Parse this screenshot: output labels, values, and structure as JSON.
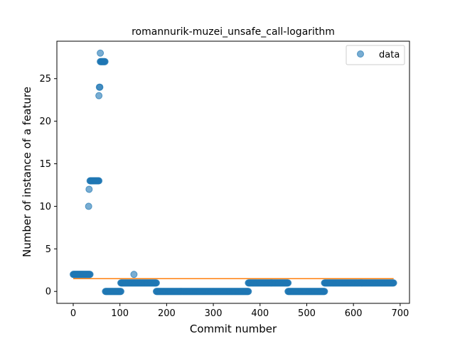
{
  "chart_data": {
    "type": "scatter",
    "title": "romannurik-muzei_unsafe_call-logarithm",
    "xlabel": "Commit number",
    "ylabel": "Number of instance of a feature",
    "xlim": [
      -35,
      720
    ],
    "ylim": [
      -1.4,
      29.4
    ],
    "xticks": [
      0,
      100,
      200,
      300,
      400,
      500,
      600,
      700
    ],
    "yticks": [
      0,
      5,
      10,
      15,
      20,
      25
    ],
    "legend": {
      "placement": "top-right",
      "entries": [
        "data"
      ]
    },
    "colors": {
      "points": "#1f77b4",
      "trend": "#ff7f0e"
    },
    "series": [
      {
        "name": "data",
        "segments": [
          {
            "x_start": 0,
            "x_end": 36,
            "step": 1,
            "y": 2
          },
          {
            "x_start": 33,
            "x_end": 33,
            "step": 1,
            "y": 10
          },
          {
            "x_start": 34,
            "x_end": 34,
            "step": 1,
            "y": 12
          },
          {
            "x_start": 36,
            "x_end": 55,
            "step": 1,
            "y": 13
          },
          {
            "x_start": 55,
            "x_end": 55,
            "step": 1,
            "y": 23
          },
          {
            "x_start": 56,
            "x_end": 57,
            "step": 1,
            "y": 24
          },
          {
            "x_start": 58,
            "x_end": 58,
            "step": 1,
            "y": 28
          },
          {
            "x_start": 58,
            "x_end": 68,
            "step": 1,
            "y": 27
          },
          {
            "x_start": 69,
            "x_end": 102,
            "step": 1,
            "y": 0
          },
          {
            "x_start": 102,
            "x_end": 178,
            "step": 1,
            "y": 1
          },
          {
            "x_start": 130,
            "x_end": 130,
            "step": 1,
            "y": 2
          },
          {
            "x_start": 178,
            "x_end": 375,
            "step": 1,
            "y": 0
          },
          {
            "x_start": 375,
            "x_end": 460,
            "step": 1,
            "y": 1
          },
          {
            "x_start": 460,
            "x_end": 538,
            "step": 1,
            "y": 0
          },
          {
            "x_start": 538,
            "x_end": 686,
            "step": 1,
            "y": 1
          }
        ]
      }
    ],
    "trend_line": {
      "x": [
        0,
        686
      ],
      "y": [
        1.5,
        1.5
      ]
    }
  }
}
